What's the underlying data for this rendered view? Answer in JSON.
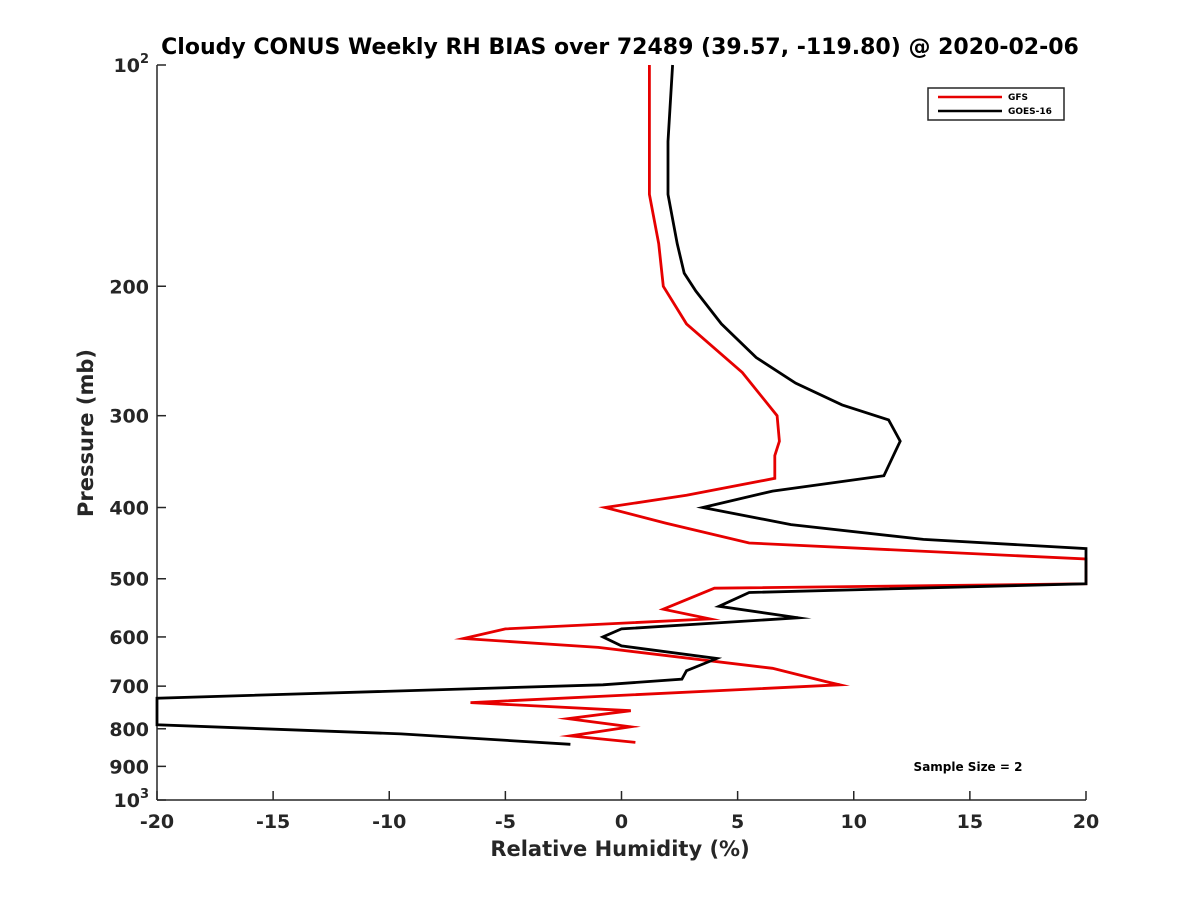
{
  "chart_data": {
    "type": "line",
    "title": "Cloudy CONUS Weekly RH BIAS over 72489 (39.57, -119.80) @ 2020-02-06",
    "xlabel": "Relative Humidity (%)",
    "ylabel": "Pressure (mb)",
    "xlim": [
      -20,
      20
    ],
    "ylim": [
      100,
      1000
    ],
    "y_scale": "log",
    "y_reversed": true,
    "grid": false,
    "legend_position": "top-right",
    "x_ticks": [
      "-20",
      "-15",
      "-10",
      "-5",
      "0",
      "5",
      "10",
      "15",
      "20"
    ],
    "y_ticks": [
      {
        "value": 100,
        "base": "10",
        "exp": "2"
      },
      {
        "value": 200,
        "label": "200"
      },
      {
        "value": 300,
        "label": "300"
      },
      {
        "value": 400,
        "label": "400"
      },
      {
        "value": 500,
        "label": "500"
      },
      {
        "value": 600,
        "label": "600"
      },
      {
        "value": 700,
        "label": "700"
      },
      {
        "value": 800,
        "label": "800"
      },
      {
        "value": 900,
        "label": "900"
      },
      {
        "value": 1000,
        "base": "10",
        "exp": "3"
      }
    ],
    "series": [
      {
        "name": "GFS",
        "color": "#e60000",
        "points": [
          [
            1.2,
            100
          ],
          [
            1.2,
            150
          ],
          [
            1.6,
            175
          ],
          [
            1.8,
            200
          ],
          [
            2.8,
            225
          ],
          [
            5.2,
            262
          ],
          [
            6.7,
            300
          ],
          [
            6.8,
            325
          ],
          [
            6.6,
            340
          ],
          [
            6.6,
            365
          ],
          [
            2.8,
            385
          ],
          [
            -0.7,
            400
          ],
          [
            1.9,
            420
          ],
          [
            5.5,
            447
          ],
          [
            20,
            470
          ],
          [
            20,
            508
          ],
          [
            4.0,
            515
          ],
          [
            1.8,
            550
          ],
          [
            3.8,
            567
          ],
          [
            -5.0,
            585
          ],
          [
            -6.8,
            603
          ],
          [
            -1.0,
            620
          ],
          [
            6.5,
            662
          ],
          [
            8.8,
            690
          ],
          [
            9.4,
            697
          ],
          [
            -6.5,
            737
          ],
          [
            0.4,
            756
          ],
          [
            -2.3,
            775
          ],
          [
            0.4,
            795
          ],
          [
            -2.2,
            818
          ],
          [
            0.6,
            835
          ]
        ]
      },
      {
        "name": "GOES-16",
        "color": "#000000",
        "points": [
          [
            2.2,
            100
          ],
          [
            2.0,
            127
          ],
          [
            2.0,
            150
          ],
          [
            2.4,
            175
          ],
          [
            2.7,
            192
          ],
          [
            3.2,
            203
          ],
          [
            4.3,
            225
          ],
          [
            5.8,
            250
          ],
          [
            7.5,
            271
          ],
          [
            9.5,
            290
          ],
          [
            11.5,
            304
          ],
          [
            12.0,
            325
          ],
          [
            11.8,
            335
          ],
          [
            11.3,
            362
          ],
          [
            6.5,
            380
          ],
          [
            3.5,
            400
          ],
          [
            7.3,
            422
          ],
          [
            13.0,
            442
          ],
          [
            20,
            455
          ],
          [
            20,
            508
          ],
          [
            5.5,
            522
          ],
          [
            4.2,
            545
          ],
          [
            7.6,
            565
          ],
          [
            0,
            585
          ],
          [
            -0.8,
            600
          ],
          [
            0,
            617
          ],
          [
            4.1,
            642
          ],
          [
            2.8,
            667
          ],
          [
            2.6,
            685
          ],
          [
            -0.8,
            697
          ],
          [
            -20,
            727
          ],
          [
            -20,
            790
          ],
          [
            -9.5,
            813
          ],
          [
            -2.2,
            840
          ]
        ]
      }
    ],
    "annotations": [
      "Sample Size = 2"
    ]
  }
}
